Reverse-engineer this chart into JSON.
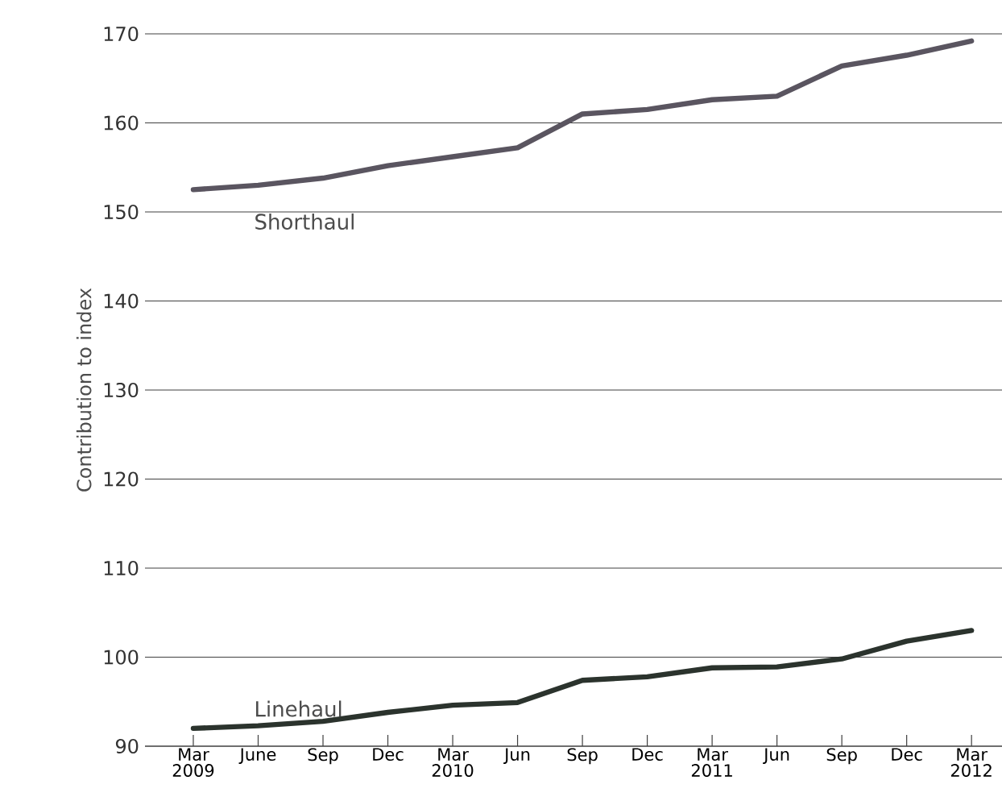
{
  "chart_data": {
    "type": "line",
    "ylabel": "Contribution to index",
    "categories": [
      "Mar 2009",
      "June",
      "Sep",
      "Dec",
      "Mar 2010",
      "Jun",
      "Sep",
      "Dec",
      "Mar 2011",
      "Jun",
      "Sep",
      "Dec",
      "Mar 2012"
    ],
    "series": [
      {
        "name": "Shorthaul",
        "color": "#5a5560",
        "values": [
          152.5,
          153,
          153.8,
          155.2,
          156.2,
          157.2,
          161,
          161.5,
          162.6,
          163,
          166.4,
          167.6,
          169.2
        ]
      },
      {
        "name": "Linehaul",
        "color": "#2b332d",
        "values": [
          92,
          92.3,
          92.8,
          93.8,
          94.6,
          94.9,
          97.4,
          97.8,
          98.8,
          98.9,
          99.8,
          101.8,
          103
        ]
      }
    ],
    "ylim": [
      90,
      170
    ],
    "yticks": [
      90,
      100,
      110,
      120,
      130,
      140,
      150,
      160,
      170
    ],
    "grid": "y",
    "marker": "none",
    "line_style": "solid"
  }
}
